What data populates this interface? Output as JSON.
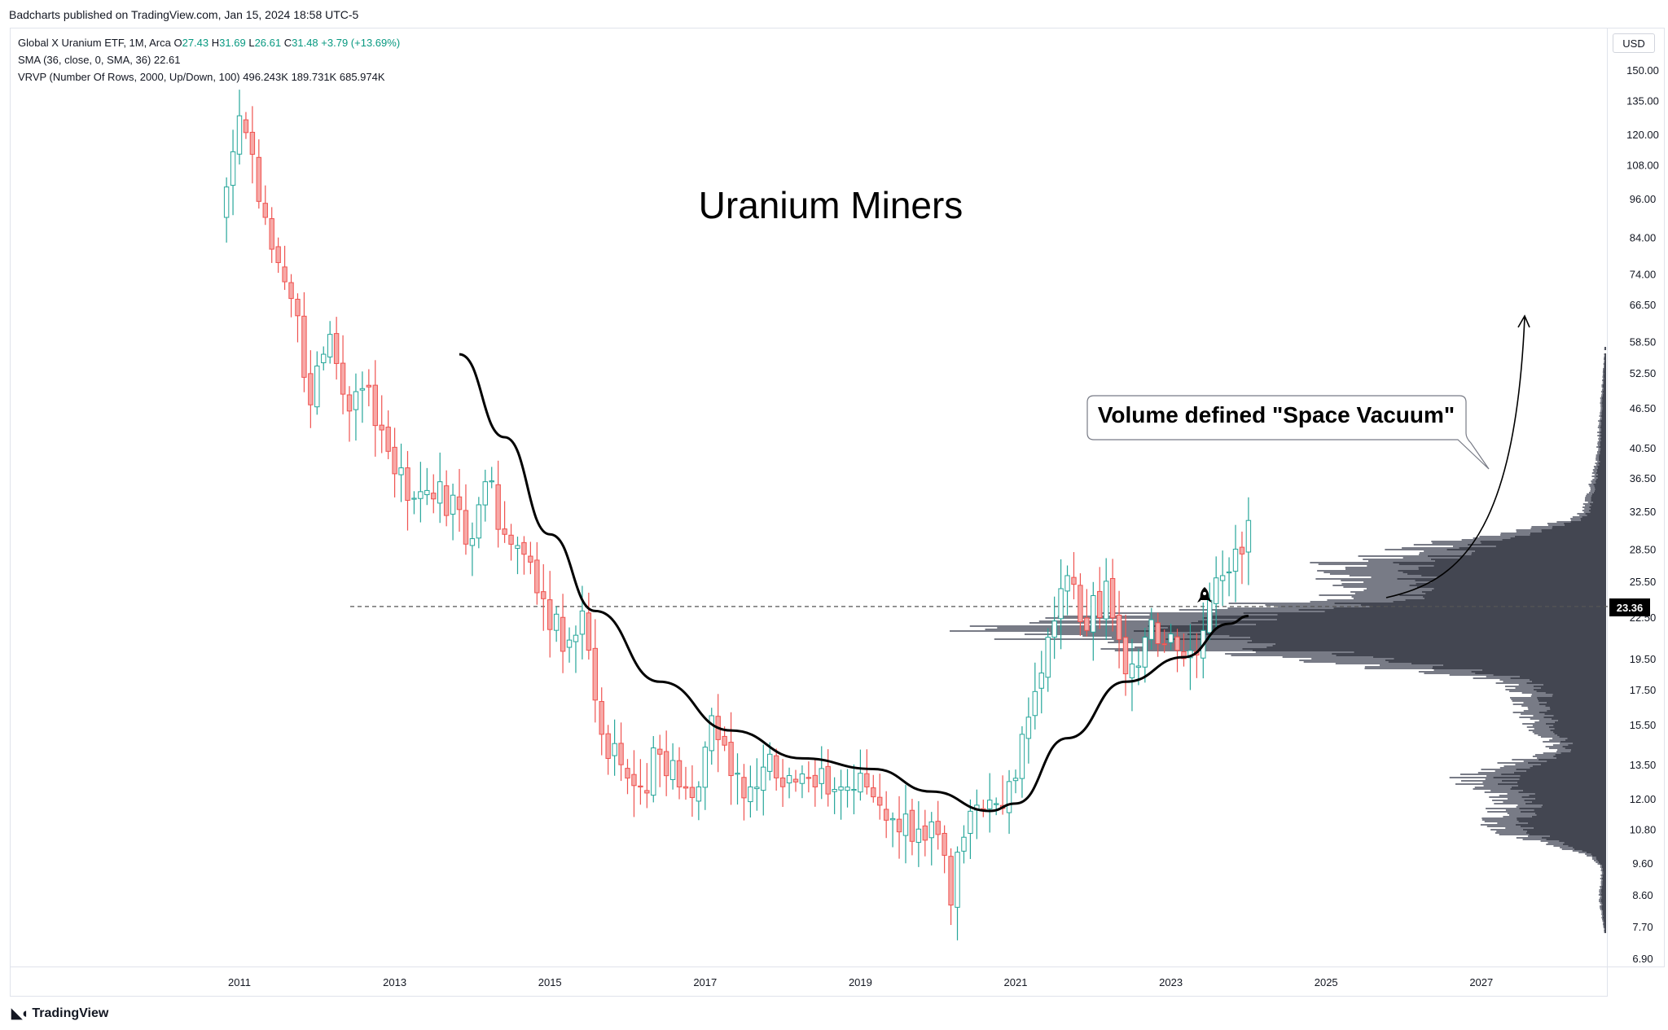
{
  "header": {
    "published_line": "Badcharts published on TradingView.com, Jan 15, 2024 18:58 UTC-5"
  },
  "legend": {
    "symbol": "Global X Uranium ETF, 1M, Arca",
    "o_label": "O",
    "o_value": "27.43",
    "h_label": "H",
    "h_value": "31.69",
    "l_label": "L",
    "l_value": "26.61",
    "c_label": "C",
    "c_value": "31.48",
    "change": "+3.79 (+13.69%)",
    "sma_label": "SMA (36, close, 0, SMA, 36)",
    "sma_value": "22.61",
    "vrvp_label": "VRVP (Number Of Rows, 2000, Up/Down, 100)",
    "vrvp_up": "496.243K",
    "vrvp_down": "189.731K",
    "vrvp_total": "685.974K"
  },
  "currency": "USD",
  "footer": {
    "brand": "TradingView"
  },
  "colors": {
    "up": "#26a69a",
    "up_fill": "#ffffff",
    "down": "#ef5350",
    "down_fill": "#f7a9a7",
    "sma": "#000000",
    "profile_dark": "#434651",
    "profile_light": "#787b86",
    "legend_value": "#089981",
    "last_price_bg": "#000000"
  },
  "chart_data": {
    "type": "candlestick",
    "title": "Uranium Miners",
    "scale": "log",
    "ylim": [
      6.9,
      160
    ],
    "x_ticks": [
      "2011",
      "2013",
      "2015",
      "2017",
      "2019",
      "2021",
      "2023",
      "2025",
      "2027"
    ],
    "y_ticks": [
      "150.00",
      "135.00",
      "120.00",
      "108.00",
      "96.00",
      "84.00",
      "74.00",
      "66.50",
      "58.50",
      "52.50",
      "46.50",
      "40.50",
      "36.50",
      "32.50",
      "28.50",
      "25.50",
      "22.50",
      "19.50",
      "17.50",
      "15.50",
      "13.50",
      "12.00",
      "10.80",
      "9.60",
      "8.60",
      "7.70",
      "6.90"
    ],
    "last_price": "23.36",
    "horizontal_line": 23.36,
    "annotation": "Volume defined \"Space Vacuum\"",
    "monthly_close_anchors": [
      {
        "date": "2010-11",
        "close": 100
      },
      {
        "date": "2011-01",
        "close": 128
      },
      {
        "date": "2011-03",
        "close": 112
      },
      {
        "date": "2011-05",
        "close": 90
      },
      {
        "date": "2011-08",
        "close": 72
      },
      {
        "date": "2011-10",
        "close": 64
      },
      {
        "date": "2011-12",
        "close": 47
      },
      {
        "date": "2012-03",
        "close": 60
      },
      {
        "date": "2012-06",
        "close": 46
      },
      {
        "date": "2012-09",
        "close": 50
      },
      {
        "date": "2012-12",
        "close": 40
      },
      {
        "date": "2013-04",
        "close": 34
      },
      {
        "date": "2013-08",
        "close": 36
      },
      {
        "date": "2013-12",
        "close": 29
      },
      {
        "date": "2014-03",
        "close": 36
      },
      {
        "date": "2014-06",
        "close": 30
      },
      {
        "date": "2014-09",
        "close": 28
      },
      {
        "date": "2014-12",
        "close": 24
      },
      {
        "date": "2015-03",
        "close": 20
      },
      {
        "date": "2015-06",
        "close": 23
      },
      {
        "date": "2015-09",
        "close": 15
      },
      {
        "date": "2015-12",
        "close": 13.5
      },
      {
        "date": "2016-03",
        "close": 12.5
      },
      {
        "date": "2016-06",
        "close": 14
      },
      {
        "date": "2016-09",
        "close": 12.5
      },
      {
        "date": "2016-12",
        "close": 12.5
      },
      {
        "date": "2017-02",
        "close": 16
      },
      {
        "date": "2017-05",
        "close": 13
      },
      {
        "date": "2017-08",
        "close": 12.5
      },
      {
        "date": "2017-11",
        "close": 14
      },
      {
        "date": "2018-02",
        "close": 13
      },
      {
        "date": "2018-06",
        "close": 12.5
      },
      {
        "date": "2018-10",
        "close": 12.5
      },
      {
        "date": "2019-02",
        "close": 12.5
      },
      {
        "date": "2019-06",
        "close": 11.2
      },
      {
        "date": "2019-10",
        "close": 10.8
      },
      {
        "date": "2020-01",
        "close": 10.6
      },
      {
        "date": "2020-03",
        "close": 8.3
      },
      {
        "date": "2020-05",
        "close": 10.5
      },
      {
        "date": "2020-08",
        "close": 11.5
      },
      {
        "date": "2020-11",
        "close": 11.6
      },
      {
        "date": "2021-02",
        "close": 15
      },
      {
        "date": "2021-06",
        "close": 21
      },
      {
        "date": "2021-09",
        "close": 26
      },
      {
        "date": "2021-12",
        "close": 21.5
      },
      {
        "date": "2022-03",
        "close": 25.5
      },
      {
        "date": "2022-06",
        "close": 18.5
      },
      {
        "date": "2022-09",
        "close": 21
      },
      {
        "date": "2022-12",
        "close": 20.5
      },
      {
        "date": "2023-03",
        "close": 19.5
      },
      {
        "date": "2023-06",
        "close": 21.5
      },
      {
        "date": "2023-09",
        "close": 26
      },
      {
        "date": "2023-11",
        "close": 28.5
      },
      {
        "date": "2024-01",
        "close": 31.48
      }
    ],
    "sma": {
      "name": "SMA (36, close, 0, SMA, 36)",
      "points": [
        {
          "date": "2013-11",
          "value": 56
        },
        {
          "date": "2014-06",
          "value": 42
        },
        {
          "date": "2015-01",
          "value": 30
        },
        {
          "date": "2015-08",
          "value": 23
        },
        {
          "date": "2016-06",
          "value": 18
        },
        {
          "date": "2017-05",
          "value": 15.2
        },
        {
          "date": "2018-04",
          "value": 13.8
        },
        {
          "date": "2019-03",
          "value": 13.3
        },
        {
          "date": "2019-12",
          "value": 12.3
        },
        {
          "date": "2020-09",
          "value": 11.5
        },
        {
          "date": "2021-01",
          "value": 11.8
        },
        {
          "date": "2021-09",
          "value": 14.8
        },
        {
          "date": "2022-06",
          "value": 18.0
        },
        {
          "date": "2023-03",
          "value": 19.6
        },
        {
          "date": "2023-10",
          "value": 22.0
        },
        {
          "date": "2024-01",
          "value": 22.61
        }
      ]
    }
  }
}
